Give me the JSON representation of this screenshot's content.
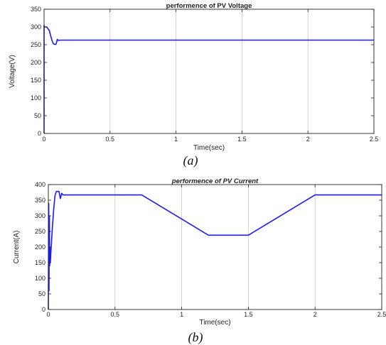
{
  "chart_data": [
    {
      "type": "line",
      "title": "performence of PV Voltage",
      "title_italic": false,
      "xlabel": "Time(sec)",
      "ylabel": "Voltage(V)",
      "caption": "(a)",
      "xlim": [
        0,
        2.5
      ],
      "ylim": [
        0,
        350
      ],
      "xticks": [
        0,
        0.5,
        1,
        1.5,
        2,
        2.5
      ],
      "xtick_labels": [
        "0",
        "0.5",
        "1",
        "1.5",
        "2",
        "2.5"
      ],
      "yticks": [
        0,
        50,
        100,
        150,
        200,
        250,
        300,
        350
      ],
      "ytick_labels": [
        "0",
        "50",
        "100",
        "150",
        "200",
        "250",
        "300",
        "350"
      ],
      "grid": "vertical",
      "line_color": "#1a1aff",
      "series": [
        {
          "x": [
            0,
            0,
            0.003,
            0.02,
            0.04,
            0.05,
            0.06,
            0.07,
            0.08,
            0.09,
            0.095,
            0.1,
            0.11,
            0.12,
            0.2,
            0.5,
            1,
            1.5,
            2,
            2.5
          ],
          "y": [
            0,
            305,
            300,
            300,
            290,
            275,
            262,
            253,
            251,
            251,
            257,
            265,
            262,
            263,
            263,
            263,
            263,
            263,
            263,
            263
          ]
        }
      ]
    },
    {
      "type": "line",
      "title": "performence of PV Current",
      "title_italic": true,
      "xlabel": "Time(sec)",
      "ylabel": "Current(A)",
      "caption": "(b)",
      "xlim": [
        0,
        2.5
      ],
      "ylim": [
        0,
        400
      ],
      "xticks": [
        0,
        0.5,
        1,
        1.5,
        2,
        2.5
      ],
      "xtick_labels": [
        "0",
        "0.5",
        "1",
        "1.5",
        "2",
        "2.5"
      ],
      "yticks": [
        0,
        50,
        100,
        150,
        200,
        250,
        300,
        350,
        400
      ],
      "ytick_labels": [
        "0",
        "50",
        "100",
        "150",
        "200",
        "250",
        "300",
        "350",
        "400"
      ],
      "grid": "vertical",
      "line_color": "#1a1aff",
      "series": [
        {
          "x": [
            0,
            0.003,
            0.005,
            0.008,
            0.01,
            0.012,
            0.015,
            0.02,
            0.03,
            0.04,
            0.05,
            0.06,
            0.07,
            0.08,
            0.09,
            0.1,
            0.11,
            0.7,
            1.2,
            1.5,
            2,
            2.5
          ],
          "y": [
            0,
            340,
            60,
            300,
            140,
            200,
            150,
            190,
            260,
            320,
            365,
            378,
            378,
            378,
            355,
            372,
            367,
            367,
            238,
            238,
            367,
            367
          ]
        }
      ]
    }
  ]
}
